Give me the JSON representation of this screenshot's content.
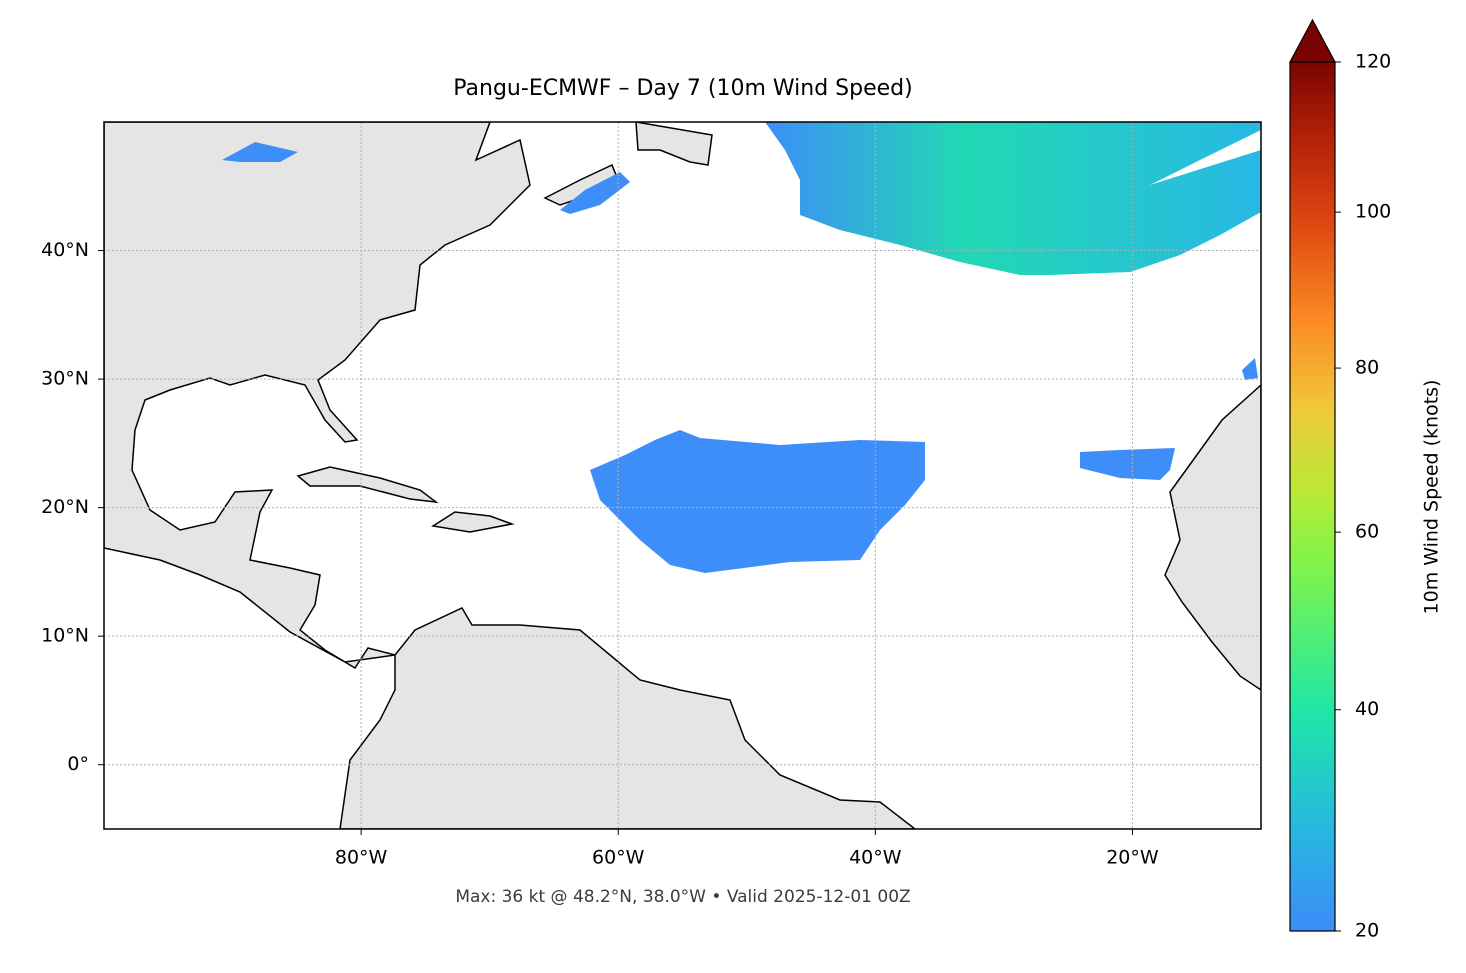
{
  "map": {
    "title": "Pangu-ECMWF – Day 7 (10m Wind Speed)",
    "footer": "Max: 36 kt @ 48.2°N, 38.0°W • Valid 2025-12-01 00Z",
    "xlim": [
      -100,
      -10
    ],
    "ylim": [
      -5,
      50
    ],
    "xticks": [
      {
        "value": -80,
        "label": "80°W"
      },
      {
        "value": -60,
        "label": "60°W"
      },
      {
        "value": -40,
        "label": "40°W"
      },
      {
        "value": -20,
        "label": "20°W"
      }
    ],
    "yticks": [
      {
        "value": 0,
        "label": "0°"
      },
      {
        "value": 10,
        "label": "10°N"
      },
      {
        "value": 20,
        "label": "20°N"
      },
      {
        "value": 30,
        "label": "30°N"
      },
      {
        "value": 40,
        "label": "40°N"
      }
    ],
    "grid": true,
    "colorbar": {
      "label": "10m Wind Speed (knots)",
      "lim": [
        20,
        120
      ],
      "ticks": [
        20,
        40,
        60,
        80,
        100,
        120
      ]
    }
  }
}
